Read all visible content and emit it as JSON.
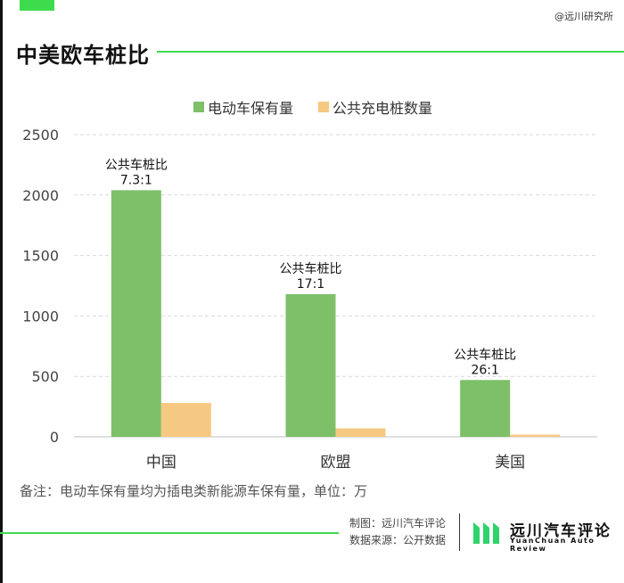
{
  "header": {
    "watermark": "@远川研究所",
    "title": "中美欧车桩比"
  },
  "colors": {
    "accent_green": "#3ddc4c",
    "ev_bar": "#7dc068",
    "charger_bar": "#f6c982",
    "gridline": "#d9d9d9"
  },
  "chart_data": {
    "type": "bar",
    "categories": [
      "中国",
      "欧盟",
      "美国"
    ],
    "series": [
      {
        "name": "电动车保有量",
        "values": [
          2040,
          1180,
          470
        ]
      },
      {
        "name": "公共充电桩数量",
        "values": [
          280,
          70,
          18
        ]
      }
    ],
    "ylim": [
      0,
      2500
    ],
    "yticks": [
      "0",
      "500",
      "1000",
      "1500",
      "2000",
      "2500"
    ],
    "grid": true,
    "legend_position": "top-center",
    "annotations": [
      {
        "label": "公共车桩比",
        "ratio": "7.3:1"
      },
      {
        "label": "公共车桩比",
        "ratio": "17:1"
      },
      {
        "label": "公共车桩比",
        "ratio": "26:1"
      }
    ]
  },
  "footnote": "备注：电动车保有量均为插电类新能源车保有量，单位：万",
  "credits": {
    "maker": "制图：远川汽车评论",
    "source": "数据来源：公开数据"
  },
  "brand": {
    "name": "远川汽车评论",
    "sub": "YuanChuan  Auto  Review"
  }
}
